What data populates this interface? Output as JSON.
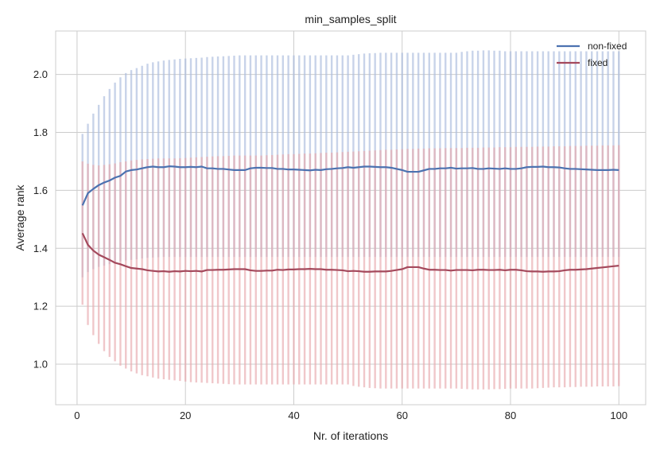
{
  "chart_data": {
    "type": "line",
    "title": "min_samples_split",
    "xlabel": "Nr. of iterations",
    "ylabel": "Average rank",
    "xlim": [
      -3.95,
      104.95
    ],
    "ylim": [
      0.86,
      2.15
    ],
    "xticks": [
      0,
      20,
      40,
      60,
      80,
      100
    ],
    "xtick_labels": [
      "0",
      "20",
      "40",
      "60",
      "80",
      "100"
    ],
    "yticks": [
      1.0,
      1.2,
      1.4,
      1.6,
      1.8,
      2.0
    ],
    "ytick_labels": [
      "1.0",
      "1.2",
      "1.4",
      "1.6",
      "1.8",
      "2.0"
    ],
    "grid": true,
    "legend_position": "top-right",
    "x": [
      1,
      2,
      3,
      4,
      5,
      6,
      7,
      8,
      9,
      10,
      11,
      12,
      13,
      14,
      15,
      16,
      17,
      18,
      19,
      20,
      21,
      22,
      23,
      24,
      25,
      26,
      27,
      28,
      29,
      30,
      31,
      32,
      33,
      34,
      35,
      36,
      37,
      38,
      39,
      40,
      41,
      42,
      43,
      44,
      45,
      46,
      47,
      48,
      49,
      50,
      51,
      52,
      53,
      54,
      55,
      56,
      57,
      58,
      59,
      60,
      61,
      62,
      63,
      64,
      65,
      66,
      67,
      68,
      69,
      70,
      71,
      72,
      73,
      74,
      75,
      76,
      77,
      78,
      79,
      80,
      81,
      82,
      83,
      84,
      85,
      86,
      87,
      88,
      89,
      90,
      91,
      92,
      93,
      94,
      95,
      96,
      97,
      98,
      99,
      100
    ],
    "series": [
      {
        "name": "non-fixed",
        "color": "#4c72b0",
        "band_color": "#aabbdd",
        "values": [
          1.548,
          1.59,
          1.605,
          1.618,
          1.627,
          1.634,
          1.644,
          1.65,
          1.665,
          1.67,
          1.672,
          1.676,
          1.68,
          1.682,
          1.68,
          1.68,
          1.683,
          1.682,
          1.68,
          1.68,
          1.681,
          1.68,
          1.682,
          1.676,
          1.676,
          1.674,
          1.674,
          1.672,
          1.67,
          1.67,
          1.67,
          1.676,
          1.678,
          1.678,
          1.677,
          1.677,
          1.674,
          1.674,
          1.672,
          1.672,
          1.671,
          1.67,
          1.669,
          1.671,
          1.67,
          1.673,
          1.674,
          1.676,
          1.677,
          1.68,
          1.678,
          1.68,
          1.682,
          1.682,
          1.681,
          1.68,
          1.68,
          1.678,
          1.674,
          1.67,
          1.664,
          1.664,
          1.664,
          1.669,
          1.674,
          1.674,
          1.676,
          1.676,
          1.678,
          1.675,
          1.676,
          1.676,
          1.677,
          1.674,
          1.674,
          1.676,
          1.675,
          1.674,
          1.676,
          1.674,
          1.674,
          1.676,
          1.68,
          1.681,
          1.681,
          1.682,
          1.68,
          1.68,
          1.679,
          1.676,
          1.674,
          1.674,
          1.673,
          1.672,
          1.671,
          1.67,
          1.67,
          1.67,
          1.671,
          1.67
        ],
        "upper": [
          1.795,
          1.83,
          1.865,
          1.895,
          1.925,
          1.95,
          1.972,
          1.99,
          2.005,
          2.015,
          2.022,
          2.03,
          2.037,
          2.042,
          2.045,
          2.048,
          2.05,
          2.052,
          2.054,
          2.055,
          2.056,
          2.057,
          2.058,
          2.06,
          2.061,
          2.062,
          2.063,
          2.064,
          2.065,
          2.066,
          2.066,
          2.066,
          2.066,
          2.066,
          2.066,
          2.066,
          2.066,
          2.066,
          2.066,
          2.066,
          2.066,
          2.066,
          2.066,
          2.066,
          2.066,
          2.066,
          2.066,
          2.066,
          2.066,
          2.066,
          2.068,
          2.07,
          2.072,
          2.073,
          2.074,
          2.075,
          2.075,
          2.075,
          2.075,
          2.075,
          2.075,
          2.075,
          2.075,
          2.075,
          2.075,
          2.075,
          2.075,
          2.075,
          2.075,
          2.075,
          2.078,
          2.08,
          2.082,
          2.082,
          2.083,
          2.083,
          2.082,
          2.082,
          2.08,
          2.08,
          2.08,
          2.08,
          2.08,
          2.08,
          2.08,
          2.08,
          2.08,
          2.08,
          2.08,
          2.08,
          2.08,
          2.08,
          2.08,
          2.08,
          2.08,
          2.08,
          2.08,
          2.08,
          2.08,
          2.08
        ],
        "lower": [
          1.3,
          1.318,
          1.328,
          1.336,
          1.34,
          1.345,
          1.35,
          1.355,
          1.358,
          1.36,
          1.362,
          1.365,
          1.367,
          1.368,
          1.369,
          1.37,
          1.37,
          1.37,
          1.37,
          1.37,
          1.37,
          1.37,
          1.37,
          1.37,
          1.37,
          1.37,
          1.37,
          1.37,
          1.37,
          1.37,
          1.37,
          1.37,
          1.37,
          1.37,
          1.37,
          1.37,
          1.37,
          1.37,
          1.37,
          1.37,
          1.37,
          1.37,
          1.37,
          1.37,
          1.37,
          1.37,
          1.37,
          1.37,
          1.37,
          1.37,
          1.37,
          1.37,
          1.37,
          1.37,
          1.37,
          1.37,
          1.37,
          1.37,
          1.37,
          1.37,
          1.37,
          1.37,
          1.37,
          1.37,
          1.37,
          1.37,
          1.37,
          1.37,
          1.37,
          1.37,
          1.37,
          1.37,
          1.37,
          1.37,
          1.37,
          1.37,
          1.37,
          1.37,
          1.37,
          1.37,
          1.37,
          1.37,
          1.37,
          1.37,
          1.37,
          1.37,
          1.37,
          1.37,
          1.37,
          1.37,
          1.37,
          1.37,
          1.37,
          1.37,
          1.37,
          1.37,
          1.37,
          1.37,
          1.37,
          1.37
        ]
      },
      {
        "name": "fixed",
        "color": "#a4495c",
        "band_color": "#e8a9ad",
        "values": [
          1.452,
          1.412,
          1.392,
          1.378,
          1.369,
          1.36,
          1.35,
          1.345,
          1.338,
          1.332,
          1.33,
          1.328,
          1.324,
          1.322,
          1.32,
          1.321,
          1.319,
          1.321,
          1.32,
          1.322,
          1.321,
          1.322,
          1.32,
          1.325,
          1.325,
          1.326,
          1.326,
          1.327,
          1.328,
          1.328,
          1.328,
          1.324,
          1.322,
          1.322,
          1.323,
          1.323,
          1.326,
          1.325,
          1.327,
          1.327,
          1.328,
          1.328,
          1.329,
          1.328,
          1.328,
          1.326,
          1.326,
          1.325,
          1.324,
          1.321,
          1.322,
          1.321,
          1.319,
          1.319,
          1.32,
          1.32,
          1.32,
          1.322,
          1.325,
          1.328,
          1.335,
          1.335,
          1.335,
          1.33,
          1.326,
          1.326,
          1.325,
          1.325,
          1.323,
          1.325,
          1.325,
          1.325,
          1.324,
          1.326,
          1.326,
          1.325,
          1.325,
          1.326,
          1.324,
          1.326,
          1.326,
          1.324,
          1.321,
          1.32,
          1.32,
          1.319,
          1.32,
          1.32,
          1.321,
          1.324,
          1.326,
          1.326,
          1.327,
          1.328,
          1.33,
          1.332,
          1.334,
          1.336,
          1.338,
          1.34
        ],
        "upper": [
          1.7,
          1.692,
          1.688,
          1.686,
          1.688,
          1.69,
          1.693,
          1.697,
          1.7,
          1.703,
          1.705,
          1.707,
          1.708,
          1.709,
          1.71,
          1.71,
          1.71,
          1.71,
          1.711,
          1.712,
          1.713,
          1.714,
          1.715,
          1.716,
          1.717,
          1.718,
          1.718,
          1.719,
          1.72,
          1.72,
          1.72,
          1.72,
          1.72,
          1.72,
          1.721,
          1.722,
          1.723,
          1.724,
          1.725,
          1.725,
          1.726,
          1.727,
          1.727,
          1.728,
          1.729,
          1.73,
          1.73,
          1.731,
          1.732,
          1.733,
          1.734,
          1.735,
          1.736,
          1.737,
          1.738,
          1.739,
          1.74,
          1.74,
          1.741,
          1.742,
          1.743,
          1.743,
          1.744,
          1.744,
          1.745,
          1.745,
          1.745,
          1.746,
          1.746,
          1.746,
          1.746,
          1.747,
          1.747,
          1.747,
          1.748,
          1.748,
          1.748,
          1.749,
          1.749,
          1.749,
          1.75,
          1.75,
          1.75,
          1.75,
          1.751,
          1.751,
          1.751,
          1.752,
          1.752,
          1.752,
          1.753,
          1.753,
          1.753,
          1.754,
          1.754,
          1.754,
          1.755,
          1.755,
          1.755,
          1.756
        ],
        "lower": [
          1.205,
          1.135,
          1.1,
          1.07,
          1.045,
          1.025,
          1.01,
          0.995,
          0.985,
          0.975,
          0.968,
          0.962,
          0.958,
          0.954,
          0.95,
          0.948,
          0.946,
          0.944,
          0.942,
          0.94,
          0.938,
          0.937,
          0.936,
          0.935,
          0.934,
          0.933,
          0.932,
          0.931,
          0.93,
          0.93,
          0.93,
          0.93,
          0.93,
          0.93,
          0.93,
          0.93,
          0.93,
          0.93,
          0.93,
          0.93,
          0.93,
          0.93,
          0.93,
          0.93,
          0.93,
          0.93,
          0.93,
          0.93,
          0.93,
          0.93,
          0.925,
          0.922,
          0.92,
          0.918,
          0.917,
          0.916,
          0.916,
          0.916,
          0.916,
          0.916,
          0.916,
          0.916,
          0.916,
          0.916,
          0.916,
          0.916,
          0.916,
          0.916,
          0.916,
          0.916,
          0.915,
          0.914,
          0.913,
          0.913,
          0.913,
          0.913,
          0.914,
          0.914,
          0.915,
          0.916,
          0.916,
          0.916,
          0.916,
          0.916,
          0.917,
          0.918,
          0.919,
          0.92,
          0.92,
          0.92,
          0.921,
          0.921,
          0.922,
          0.922,
          0.922,
          0.923,
          0.923,
          0.923,
          0.923,
          0.924
        ]
      }
    ]
  }
}
